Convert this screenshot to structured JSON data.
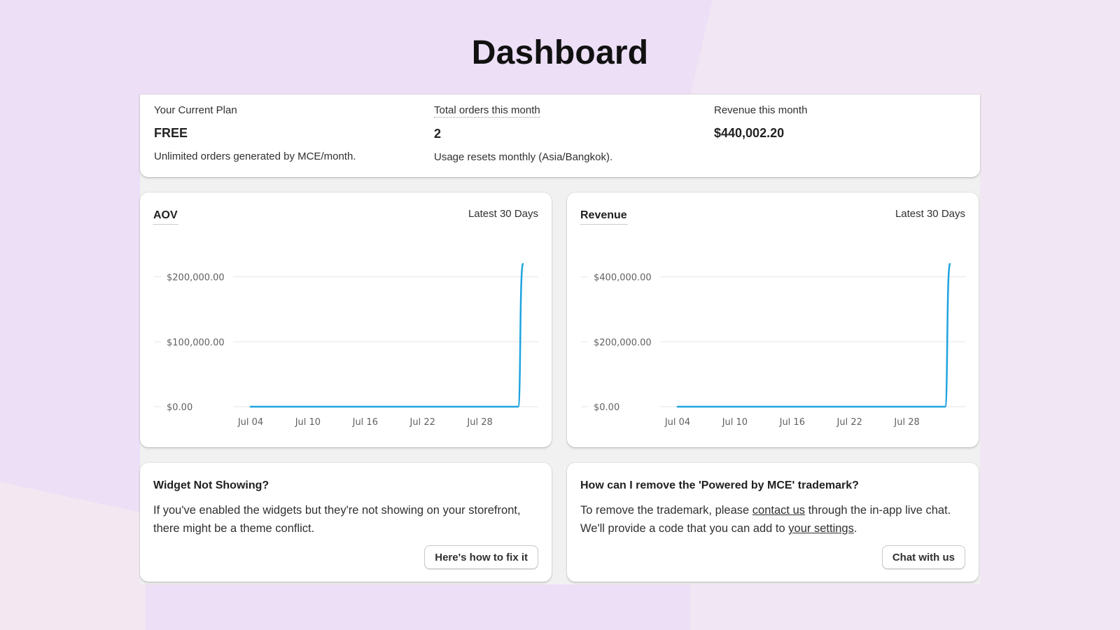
{
  "page": {
    "title": "Dashboard"
  },
  "stats": {
    "plan": {
      "label": "Your Current Plan",
      "value": "FREE",
      "note": "Unlimited orders generated by MCE/month."
    },
    "orders": {
      "label": "Total orders this month",
      "value": "2",
      "note": "Usage resets monthly (Asia/Bangkok)."
    },
    "revenue": {
      "label": "Revenue this month",
      "value": "$440,002.20"
    }
  },
  "charts": {
    "aov": {
      "title": "AOV",
      "range": "Latest 30 Days"
    },
    "revenue": {
      "title": "Revenue",
      "range": "Latest 30 Days"
    }
  },
  "chart_data": [
    {
      "type": "line",
      "title": "AOV",
      "x": [
        "Jul 04",
        "Jul 05",
        "Jul 06",
        "Jul 07",
        "Jul 08",
        "Jul 09",
        "Jul 10",
        "Jul 11",
        "Jul 12",
        "Jul 13",
        "Jul 14",
        "Jul 15",
        "Jul 16",
        "Jul 17",
        "Jul 18",
        "Jul 19",
        "Jul 20",
        "Jul 21",
        "Jul 22",
        "Jul 23",
        "Jul 24",
        "Jul 25",
        "Jul 26",
        "Jul 27",
        "Jul 28",
        "Jul 29",
        "Jul 30",
        "Jul 31",
        "Aug 01",
        "Aug 02"
      ],
      "x_tick_labels": [
        "Jul 04",
        "Jul 10",
        "Jul 16",
        "Jul 22",
        "Jul 28"
      ],
      "y_tick_labels": [
        "$200,000.00",
        "$100,000.00",
        "$0.00"
      ],
      "y_ticks": [
        200000,
        100000,
        0
      ],
      "ylim": [
        0,
        220000
      ],
      "series": [
        {
          "values": [
            0,
            0,
            0,
            0,
            0,
            0,
            0,
            0,
            0,
            0,
            0,
            0,
            0,
            0,
            0,
            0,
            0,
            0,
            0,
            0,
            0,
            0,
            0,
            0,
            0,
            0,
            0,
            0,
            0,
            220001
          ]
        }
      ],
      "color": "#1fa3e0",
      "grid": true
    },
    {
      "type": "line",
      "title": "Revenue",
      "x": [
        "Jul 04",
        "Jul 05",
        "Jul 06",
        "Jul 07",
        "Jul 08",
        "Jul 09",
        "Jul 10",
        "Jul 11",
        "Jul 12",
        "Jul 13",
        "Jul 14",
        "Jul 15",
        "Jul 16",
        "Jul 17",
        "Jul 18",
        "Jul 19",
        "Jul 20",
        "Jul 21",
        "Jul 22",
        "Jul 23",
        "Jul 24",
        "Jul 25",
        "Jul 26",
        "Jul 27",
        "Jul 28",
        "Jul 29",
        "Jul 30",
        "Jul 31",
        "Aug 01",
        "Aug 02"
      ],
      "x_tick_labels": [
        "Jul 04",
        "Jul 10",
        "Jul 16",
        "Jul 22",
        "Jul 28"
      ],
      "y_tick_labels": [
        "$400,000.00",
        "$200,000.00",
        "$0.00"
      ],
      "y_ticks": [
        400000,
        200000,
        0
      ],
      "ylim": [
        0,
        440000
      ],
      "series": [
        {
          "values": [
            0,
            0,
            0,
            0,
            0,
            0,
            0,
            0,
            0,
            0,
            0,
            0,
            0,
            0,
            0,
            0,
            0,
            0,
            0,
            0,
            0,
            0,
            0,
            0,
            0,
            0,
            0,
            0,
            0,
            440002.2
          ]
        }
      ],
      "color": "#1fa3e0",
      "grid": true
    }
  ],
  "help": {
    "widget": {
      "title": "Widget Not Showing?",
      "body": "If you've enabled the widgets but they're not showing on your storefront, there might be a theme conflict.",
      "button": "Here's how to fix it"
    },
    "trademark": {
      "title": "How can I remove the 'Powered by MCE' trademark?",
      "body_1": "To remove the trademark, please ",
      "link_1": "contact us",
      "body_2": " through the in-app live chat. We'll provide a code that you can add to ",
      "link_2": "your settings",
      "body_3": ".",
      "button": "Chat with us"
    }
  }
}
